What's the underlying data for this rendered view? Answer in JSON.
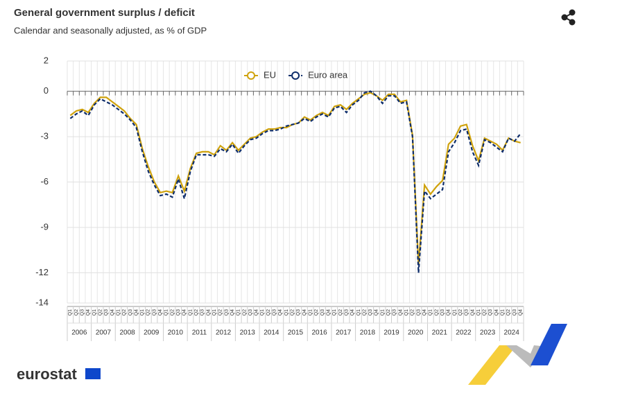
{
  "chart_data": {
    "type": "line",
    "title": "General government surplus / deficit",
    "subtitle": "Calendar and seasonally adjusted, as % of GDP",
    "logo": "eurostat",
    "categories": [
      "Q1",
      "Q2",
      "Q3",
      "Q4",
      "Q1",
      "Q2",
      "Q3",
      "Q4",
      "Q1",
      "Q2",
      "Q3",
      "Q4",
      "Q1",
      "Q2",
      "Q3",
      "Q4",
      "Q1",
      "Q2",
      "Q3",
      "Q4",
      "Q1",
      "Q2",
      "Q3",
      "Q4",
      "Q1",
      "Q2",
      "Q3",
      "Q4",
      "Q1",
      "Q2",
      "Q3",
      "Q4",
      "Q1",
      "Q2",
      "Q3",
      "Q4",
      "Q1",
      "Q2",
      "Q3",
      "Q4",
      "Q1",
      "Q2",
      "Q3",
      "Q4",
      "Q1",
      "Q2",
      "Q3",
      "Q4",
      "Q1",
      "Q2",
      "Q3",
      "Q4",
      "Q1",
      "Q2",
      "Q3",
      "Q4",
      "Q1",
      "Q2",
      "Q3",
      "Q4",
      "Q1",
      "Q2",
      "Q3",
      "Q4",
      "Q1",
      "Q2",
      "Q3",
      "Q4",
      "Q1",
      "Q2",
      "Q3",
      "Q4",
      "Q1",
      "Q2",
      "Q3",
      "Q4"
    ],
    "years": [
      "2006",
      "2007",
      "2008",
      "2009",
      "2010",
      "2011",
      "2012",
      "2013",
      "2014",
      "2015",
      "2016",
      "2017",
      "2018",
      "2019",
      "2020",
      "2021",
      "2022",
      "2023",
      "2024"
    ],
    "series": [
      {
        "name": "EU",
        "color": "#cfa20c",
        "dashed": false,
        "values": [
          -1.6,
          -1.3,
          -1.2,
          -1.4,
          -0.8,
          -0.4,
          -0.4,
          -0.7,
          -1.0,
          -1.3,
          -1.8,
          -2.2,
          -3.8,
          -5.0,
          -6.0,
          -6.7,
          -6.6,
          -6.7,
          -5.6,
          -6.6,
          -5.1,
          -4.1,
          -4.0,
          -4.0,
          -4.2,
          -3.6,
          -3.9,
          -3.4,
          -3.9,
          -3.5,
          -3.1,
          -3.0,
          -2.7,
          -2.5,
          -2.5,
          -2.4,
          -2.4,
          -2.2,
          -2.1,
          -1.7,
          -1.9,
          -1.6,
          -1.4,
          -1.6,
          -1.0,
          -0.9,
          -1.2,
          -0.8,
          -0.5,
          -0.2,
          -0.1,
          -0.3,
          -0.6,
          -0.2,
          -0.2,
          -0.7,
          -0.6,
          -2.9,
          -11.5,
          -6.2,
          -6.8,
          -6.3,
          -5.9,
          -3.5,
          -3.1,
          -2.3,
          -2.2,
          -3.6,
          -4.6,
          -3.1,
          -3.3,
          -3.5,
          -3.9,
          -3.1,
          -3.3,
          -3.4
        ]
      },
      {
        "name": "Euro area",
        "color": "#0e2d6b",
        "dashed": true,
        "values": [
          -1.8,
          -1.5,
          -1.3,
          -1.6,
          -0.9,
          -0.5,
          -0.7,
          -0.9,
          -1.2,
          -1.5,
          -1.9,
          -2.4,
          -4.0,
          -5.3,
          -6.2,
          -6.9,
          -6.8,
          -7.0,
          -5.8,
          -7.1,
          -5.3,
          -4.2,
          -4.2,
          -4.2,
          -4.3,
          -3.8,
          -4.0,
          -3.5,
          -4.1,
          -3.6,
          -3.2,
          -3.1,
          -2.8,
          -2.6,
          -2.6,
          -2.5,
          -2.3,
          -2.2,
          -2.1,
          -1.8,
          -2.0,
          -1.7,
          -1.5,
          -1.7,
          -1.1,
          -1.0,
          -1.4,
          -0.9,
          -0.6,
          -0.1,
          0.0,
          -0.3,
          -0.8,
          -0.3,
          -0.3,
          -0.8,
          -0.7,
          -3.0,
          -12.0,
          -6.6,
          -7.1,
          -6.8,
          -6.5,
          -4.0,
          -3.4,
          -2.6,
          -2.5,
          -4.0,
          -4.9,
          -3.2,
          -3.4,
          -3.7,
          -4.0,
          -3.1,
          -3.3,
          -2.8
        ]
      }
    ],
    "ylim": [
      -14,
      2
    ],
    "yticks": [
      2,
      0,
      -3,
      -6,
      -9,
      -12,
      -14
    ],
    "grid": true,
    "legend": "top"
  }
}
